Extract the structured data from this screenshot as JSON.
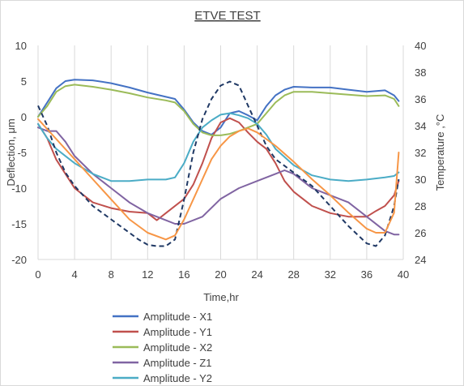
{
  "chart_data": {
    "type": "line",
    "title": "ETVE TEST",
    "xlabel": "Time,hr",
    "ylabel": "Deflection, μm",
    "y2label": "Temperature ,°C",
    "xlim": [
      0,
      40
    ],
    "ylim": [
      -20,
      10
    ],
    "y2lim": [
      24,
      40
    ],
    "xticks": [
      "0",
      "4",
      "8",
      "12",
      "16",
      "20",
      "24",
      "28",
      "32",
      "36",
      "40"
    ],
    "yticks": [
      "10",
      "5",
      "0",
      "-5",
      "-10",
      "-15",
      "-20"
    ],
    "y2ticks": [
      "40",
      "38",
      "36",
      "34",
      "32",
      "30",
      "28",
      "26",
      "24"
    ],
    "grid": "vertical",
    "legend_position": "bottom",
    "series": [
      {
        "name": "Amplitude - X1",
        "color": "#4472c4",
        "axis": "left",
        "style": "solid",
        "x": [
          0,
          1,
          2,
          3,
          4,
          6,
          8,
          10,
          12,
          14,
          15,
          16,
          17,
          18,
          19,
          20,
          21,
          22,
          23,
          24,
          25,
          26,
          27,
          28,
          30,
          32,
          34,
          36,
          38,
          39,
          39.5
        ],
        "y": [
          0,
          2,
          4,
          5,
          5.2,
          5.1,
          4.7,
          4.1,
          3.4,
          2.8,
          2.5,
          1.0,
          -0.8,
          -2.0,
          -2.5,
          -1.5,
          0.5,
          0.8,
          0.2,
          -0.5,
          1.5,
          3.0,
          3.8,
          4.2,
          4.1,
          4.1,
          3.8,
          3.5,
          3.7,
          3.0,
          2.2
        ]
      },
      {
        "name": "Amplitude - Y1",
        "color": "#c0504d",
        "axis": "left",
        "style": "solid",
        "x": [
          0,
          1,
          2,
          3,
          4,
          6,
          8,
          10,
          12,
          13,
          14,
          16,
          17,
          18,
          19,
          20,
          21,
          22,
          23,
          24,
          25,
          26,
          27,
          28,
          30,
          32,
          34,
          36,
          37,
          38,
          39,
          39.5
        ],
        "y": [
          -1,
          -3,
          -6,
          -8,
          -10,
          -12,
          -12.8,
          -13.3,
          -13.5,
          -14.5,
          -13.5,
          -11.5,
          -9.5,
          -6.5,
          -3.0,
          -0.8,
          -0.2,
          -0.8,
          -2.2,
          -3.5,
          -4.5,
          -6.5,
          -9.0,
          -10.5,
          -12.5,
          -13.5,
          -14.0,
          -14.0,
          -13.2,
          -12.5,
          -11.0,
          -9.0
        ]
      },
      {
        "name": "Amplitude - X2",
        "color": "#9bbb59",
        "axis": "left",
        "style": "solid",
        "x": [
          0,
          1,
          2,
          3,
          4,
          6,
          8,
          10,
          12,
          14,
          15,
          16,
          17,
          18,
          19,
          20,
          21,
          22,
          23,
          24,
          25,
          26,
          27,
          28,
          30,
          32,
          34,
          36,
          38,
          39,
          39.5
        ],
        "y": [
          0,
          1.5,
          3.5,
          4.3,
          4.5,
          4.2,
          3.8,
          3.3,
          2.7,
          2.3,
          2.0,
          0.8,
          -1.0,
          -2.2,
          -2.6,
          -2.6,
          -2.4,
          -2.0,
          -1.5,
          -1.0,
          0.5,
          2.0,
          3.0,
          3.5,
          3.5,
          3.3,
          3.1,
          2.9,
          3.0,
          2.5,
          1.5
        ]
      },
      {
        "name": "Amplitude - Z1",
        "color": "#8064a2",
        "axis": "left",
        "style": "solid",
        "x": [
          0,
          1,
          2,
          3,
          4,
          6,
          8,
          10,
          12,
          14,
          15,
          16,
          18,
          20,
          22,
          24,
          26,
          27,
          28,
          30,
          32,
          34,
          36,
          38,
          39,
          39.5
        ],
        "y": [
          -1.5,
          -2,
          -2,
          -3.5,
          -5.5,
          -8,
          -10,
          -12,
          -13.5,
          -14.5,
          -15,
          -15,
          -14,
          -11.5,
          -10,
          -9,
          -8,
          -7.5,
          -8,
          -10,
          -11,
          -12,
          -14,
          -16,
          -16.5,
          -16.5
        ]
      },
      {
        "name": "Amplitude - Y2",
        "color": "#4bacc6",
        "axis": "left",
        "style": "solid",
        "x": [
          0,
          1,
          2,
          3,
          4,
          6,
          8,
          10,
          12,
          14,
          15,
          16,
          17,
          18,
          19,
          20,
          21,
          22,
          23,
          24,
          25,
          26,
          28,
          30,
          32,
          34,
          36,
          38,
          39,
          39.5
        ],
        "y": [
          -1,
          -3,
          -4.5,
          -5.5,
          -6.5,
          -8,
          -9,
          -9,
          -8.8,
          -8.8,
          -8.5,
          -6.5,
          -3.5,
          -1.5,
          -0.5,
          0.3,
          0.5,
          0.2,
          -0.2,
          -1,
          -2.5,
          -4.5,
          -6.8,
          -8.2,
          -8.8,
          -9,
          -8.8,
          -8.5,
          -8.3,
          -7.8
        ]
      },
      {
        "name": "Temperature (dashed)",
        "color": "#1f3864",
        "axis": "right",
        "style": "dashed",
        "legend": false,
        "x": [
          0,
          1,
          2,
          3,
          4,
          6,
          8,
          10,
          11,
          12,
          13,
          14,
          15,
          16,
          17,
          18,
          19,
          20,
          21,
          22,
          23,
          24,
          25,
          26,
          28,
          30,
          32,
          34,
          36,
          37,
          38,
          39,
          39.5
        ],
        "y": [
          35.5,
          34,
          32,
          30.5,
          29.5,
          28,
          27,
          26,
          25.5,
          25.1,
          25,
          25,
          25.5,
          28.5,
          32,
          34.5,
          36,
          37,
          37.3,
          37,
          35.5,
          34,
          32.5,
          31.5,
          30.5,
          29.5,
          28,
          26.5,
          25.2,
          25,
          25.8,
          28,
          30
        ]
      },
      {
        "name": "Temperature (orange)",
        "color": "#f79646",
        "axis": "right",
        "style": "solid",
        "legend": false,
        "x": [
          0,
          2,
          4,
          6,
          8,
          10,
          12,
          14,
          15,
          16,
          17,
          18,
          19,
          20,
          21,
          22,
          23,
          24,
          25,
          26,
          28,
          30,
          32,
          34,
          36,
          37,
          38,
          39,
          39.5
        ],
        "y": [
          34.5,
          33,
          31.5,
          30,
          28.5,
          27,
          26,
          25.5,
          25.8,
          27,
          28.5,
          30,
          31.5,
          32.5,
          33.2,
          33.6,
          33.8,
          33.5,
          33,
          32.5,
          31.3,
          30,
          28.8,
          27.5,
          26.3,
          26,
          26,
          27.5,
          32
        ]
      }
    ]
  }
}
